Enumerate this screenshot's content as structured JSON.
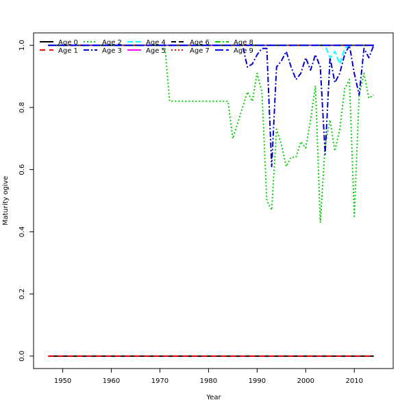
{
  "chart_data": {
    "type": "line",
    "title": "",
    "xlabel": "Year",
    "ylabel": "Maturity ogive",
    "xlim": [
      1944,
      2018
    ],
    "ylim": [
      -0.04,
      1.04
    ],
    "x_ticks": [
      1950,
      1960,
      1970,
      1980,
      1990,
      2000,
      2010
    ],
    "y_ticks": [
      0.0,
      0.2,
      0.4,
      0.6,
      0.8,
      1.0
    ],
    "y_tick_labels": [
      "0.0",
      "0.2",
      "0.4",
      "0.6",
      "0.8",
      "1.0"
    ],
    "grid": false,
    "legend_position": "top-left",
    "series": [
      {
        "name": "Age 0",
        "color": "#000000",
        "dash": "solid",
        "x": [
          1947,
          2014
        ],
        "y": [
          0,
          0
        ]
      },
      {
        "name": "Age 1",
        "color": "#ff0000",
        "dash": "8,6",
        "x": [
          1947,
          2014
        ],
        "y": [
          0,
          0
        ]
      },
      {
        "name": "Age 2",
        "color": "#00cd00",
        "dash": "2,3",
        "x": [
          1947,
          1971,
          1972,
          1984,
          1985,
          1988,
          1989,
          1990,
          1991,
          1992,
          1993,
          1994,
          1995,
          1996,
          1997,
          1998,
          1999,
          2000,
          2001,
          2002,
          2003,
          2004,
          2005,
          2006,
          2007,
          2008,
          2009,
          2010,
          2011,
          2012,
          2013,
          2014
        ],
        "y": [
          1.0,
          1.0,
          0.82,
          0.82,
          0.7,
          0.85,
          0.82,
          0.91,
          0.85,
          0.5,
          0.47,
          0.73,
          0.68,
          0.61,
          0.64,
          0.64,
          0.69,
          0.67,
          0.76,
          0.87,
          0.43,
          0.68,
          0.76,
          0.66,
          0.73,
          0.86,
          0.89,
          0.45,
          0.84,
          0.91,
          0.83,
          0.84
        ]
      },
      {
        "name": "Age 3",
        "color": "#0000cd",
        "dash": "8,3,2,3",
        "x": [
          1947,
          1987,
          1988,
          1989,
          1990,
          1991,
          1992,
          1993,
          1994,
          1995,
          1996,
          1997,
          1998,
          1999,
          2000,
          2001,
          2002,
          2003,
          2004,
          2005,
          2006,
          2007,
          2008,
          2009,
          2010,
          2011,
          2012,
          2013,
          2014
        ],
        "y": [
          1.0,
          1.0,
          0.93,
          0.94,
          0.97,
          0.99,
          0.99,
          0.61,
          0.93,
          0.95,
          0.98,
          0.93,
          0.89,
          0.91,
          0.96,
          0.92,
          0.97,
          0.93,
          0.65,
          0.96,
          0.88,
          0.91,
          0.97,
          1.0,
          0.91,
          0.84,
          0.99,
          0.96,
          1.0
        ]
      },
      {
        "name": "Age 4",
        "color": "#00ffff",
        "dash": "8,4",
        "x": [
          1947,
          2004,
          2005,
          2006,
          2007,
          2008,
          2009,
          2014
        ],
        "y": [
          1.0,
          1.0,
          0.96,
          0.98,
          0.94,
          0.99,
          1.0,
          1.0
        ]
      },
      {
        "name": "Age 5",
        "color": "#ff00ff",
        "dash": "solid",
        "x": [
          1947,
          2014
        ],
        "y": [
          1.0,
          1.0
        ]
      },
      {
        "name": "Age 6",
        "color": "#000000",
        "dash": "7,4",
        "x": [
          1947,
          2014
        ],
        "y": [
          1.0,
          1.0
        ]
      },
      {
        "name": "Age 7",
        "color": "#ff0000",
        "dash": "2,3",
        "x": [
          1947,
          2014
        ],
        "y": [
          1.0,
          1.0
        ]
      },
      {
        "name": "Age 8",
        "color": "#00cd00",
        "dash": "8,3,2,3",
        "x": [
          1947,
          2014
        ],
        "y": [
          1.0,
          1.0
        ]
      },
      {
        "name": "Age 9",
        "color": "#0000ff",
        "dash": "12,4",
        "x": [
          1947,
          2014
        ],
        "y": [
          1.0,
          1.0
        ]
      }
    ]
  }
}
